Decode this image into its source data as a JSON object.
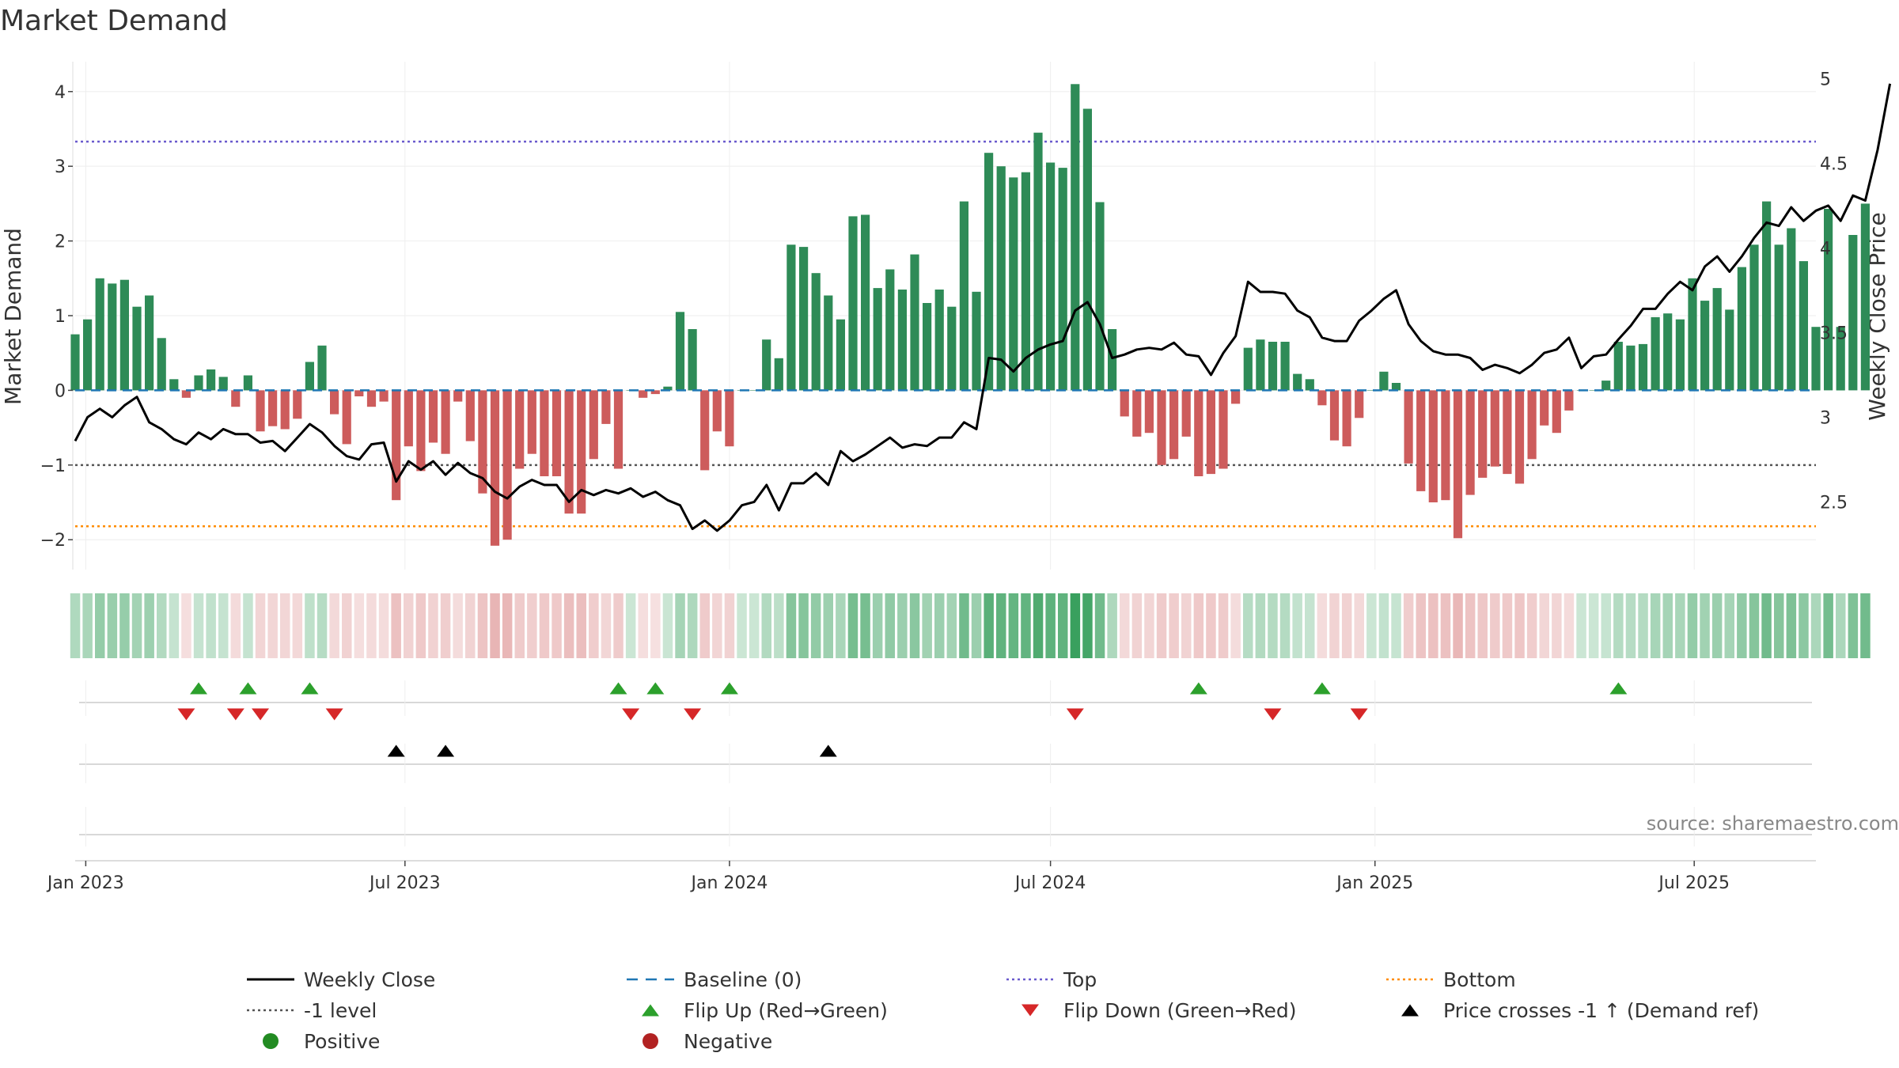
{
  "colors": {
    "positive_bar": "#2e8b57",
    "negative_bar": "#cd5c5c",
    "close_line": "#000000",
    "baseline": "#1f77b4",
    "top_line": "#6a5acd",
    "neg1_line": "#555555",
    "bottom_line": "#ff8c00",
    "flip_up": "#2ca02c",
    "flip_down": "#d62728",
    "cross": "#000000",
    "positive_dot": "#228b22",
    "negative_dot": "#b22222",
    "grid": "#eeeeee",
    "strip_pos": "#2e9b55",
    "strip_neg": "#cd5c5c"
  },
  "chart_data": {
    "type": "bar",
    "title": "Market Demand",
    "ylabel": "Market Demand",
    "y2label": "Weekly Close Price",
    "ylim": [
      -2.4,
      4.4
    ],
    "y2lim": [
      2.1,
      5.1
    ],
    "yticks": [
      "−2",
      "−1",
      "0",
      "1",
      "2",
      "3",
      "4"
    ],
    "y2ticks": [
      "2.5",
      "3",
      "3.5",
      "4",
      "4.5",
      "5"
    ],
    "x_range": [
      "2022-12-26",
      "2025-09-08"
    ],
    "xticks": [
      "Jan 2023",
      "Jul 2023",
      "Jan 2024",
      "Jul 2024",
      "Jan 2025",
      "Jul 2025"
    ],
    "levels": {
      "baseline": 0,
      "top": 3.33,
      "neg1": -1,
      "bottom": -1.82
    },
    "weeks_start": "2022-12-26",
    "demand": [
      0.75,
      0.95,
      1.5,
      1.43,
      1.48,
      1.12,
      1.27,
      0.7,
      0.15,
      -0.1,
      0.2,
      0.28,
      0.18,
      -0.22,
      0.2,
      -0.55,
      -0.48,
      -0.52,
      -0.38,
      0.38,
      0.6,
      -0.32,
      -0.72,
      -0.08,
      -0.22,
      -0.15,
      -1.47,
      -0.75,
      -1.08,
      -0.7,
      -0.85,
      -0.15,
      -0.68,
      -1.38,
      -2.08,
      -2.0,
      -1.05,
      -0.85,
      -1.15,
      -1.15,
      -1.65,
      -1.65,
      -0.92,
      -0.45,
      -1.05,
      0.0,
      -0.1,
      -0.05,
      0.05,
      1.05,
      0.82,
      -1.07,
      -0.55,
      -0.75,
      0.0,
      0.0,
      0.68,
      0.43,
      1.95,
      1.92,
      1.57,
      1.27,
      0.95,
      2.33,
      2.35,
      1.37,
      1.62,
      1.35,
      1.82,
      1.17,
      1.35,
      1.12,
      2.53,
      1.32,
      3.18,
      3.0,
      2.85,
      2.92,
      3.45,
      3.05,
      2.98,
      4.1,
      3.77,
      2.52,
      0.82,
      -0.35,
      -0.62,
      -0.57,
      -1.0,
      -0.92,
      -0.62,
      -1.15,
      -1.12,
      -1.05,
      -0.18,
      0.57,
      0.68,
      0.65,
      0.65,
      0.22,
      0.15,
      -0.2,
      -0.67,
      -0.75,
      -0.37,
      0.0,
      0.25,
      0.1,
      -0.98,
      -1.35,
      -1.5,
      -1.47,
      -1.98,
      -1.4,
      -1.17,
      -1.02,
      -1.12,
      -1.25,
      -0.92,
      -0.47,
      -0.57,
      -0.27,
      0.0,
      0.0,
      0.13,
      0.65,
      0.6,
      0.62,
      0.98,
      1.03,
      0.95,
      1.5,
      1.2,
      1.37,
      1.08,
      1.65,
      1.95,
      2.53,
      1.95,
      2.17,
      1.73,
      0.85,
      2.43,
      0.85,
      2.08,
      2.5
    ],
    "weekly_close": [
      2.86,
      3.0,
      3.05,
      3.0,
      3.07,
      3.12,
      2.97,
      2.93,
      2.87,
      2.84,
      2.91,
      2.87,
      2.93,
      2.9,
      2.9,
      2.85,
      2.86,
      2.8,
      2.88,
      2.96,
      2.91,
      2.83,
      2.77,
      2.75,
      2.84,
      2.85,
      2.62,
      2.74,
      2.69,
      2.74,
      2.66,
      2.73,
      2.67,
      2.64,
      2.56,
      2.52,
      2.59,
      2.63,
      2.6,
      2.6,
      2.5,
      2.57,
      2.54,
      2.57,
      2.55,
      2.58,
      2.53,
      2.56,
      2.51,
      2.48,
      2.34,
      2.39,
      2.33,
      2.39,
      2.48,
      2.5,
      2.6,
      2.45,
      2.61,
      2.61,
      2.67,
      2.6,
      2.8,
      2.74,
      2.78,
      2.83,
      2.88,
      2.82,
      2.84,
      2.83,
      2.88,
      2.88,
      2.97,
      2.93,
      3.35,
      3.34,
      3.27,
      3.35,
      3.4,
      3.43,
      3.45,
      3.63,
      3.68,
      3.55,
      3.35,
      3.37,
      3.4,
      3.41,
      3.4,
      3.44,
      3.37,
      3.36,
      3.25,
      3.38,
      3.48,
      3.8,
      3.74,
      3.74,
      3.73,
      3.63,
      3.59,
      3.47,
      3.45,
      3.45,
      3.57,
      3.63,
      3.7,
      3.75,
      3.55,
      3.45,
      3.39,
      3.37,
      3.37,
      3.35,
      3.28,
      3.31,
      3.29,
      3.26,
      3.31,
      3.38,
      3.4,
      3.47,
      3.29,
      3.36,
      3.37,
      3.46,
      3.54,
      3.64,
      3.64,
      3.73,
      3.8,
      3.75,
      3.89,
      3.95,
      3.86,
      3.95,
      4.06,
      4.15,
      4.13,
      4.24,
      4.16,
      4.22,
      4.25,
      4.16,
      4.31,
      4.28,
      4.58,
      4.97
    ],
    "flip_up": [
      "2023-03-06",
      "2023-04-03",
      "2023-05-08",
      "2023-10-30",
      "2023-11-20",
      "2024-01-01",
      "2024-09-23",
      "2024-12-02",
      "2025-05-19"
    ],
    "flip_down": [
      "2023-02-27",
      "2023-03-27",
      "2023-04-10",
      "2023-05-22",
      "2023-11-06",
      "2023-12-11",
      "2024-07-15",
      "2024-11-04",
      "2024-12-23"
    ],
    "cross_up": [
      "2023-06-26",
      "2023-07-24",
      "2024-02-26"
    ],
    "source": "source: sharemaestro.com",
    "legend": [
      {
        "label": "Weekly Close",
        "kind": "line",
        "color": "close_line"
      },
      {
        "label": "Baseline (0)",
        "kind": "dashed",
        "color": "baseline"
      },
      {
        "label": "Top",
        "kind": "dotted",
        "color": "top_line"
      },
      {
        "label": "Bottom",
        "kind": "dotted",
        "color": "bottom_line"
      },
      {
        "label": "-1 level",
        "kind": "dotted",
        "color": "neg1_line"
      },
      {
        "label": "Flip Up (Red→Green)",
        "kind": "tri-up",
        "color": "flip_up"
      },
      {
        "label": "Flip Down (Green→Red)",
        "kind": "tri-down",
        "color": "flip_down"
      },
      {
        "label": "Price crosses -1 ↑ (Demand ref)",
        "kind": "tri-up",
        "color": "cross"
      },
      {
        "label": "Positive",
        "kind": "dot",
        "color": "positive_dot"
      },
      {
        "label": "Negative",
        "kind": "dot",
        "color": "negative_dot"
      }
    ]
  }
}
